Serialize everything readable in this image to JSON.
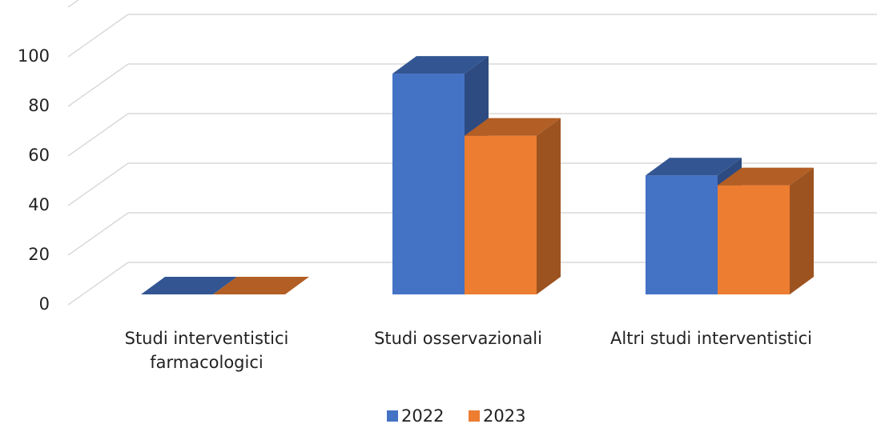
{
  "chart_data": {
    "type": "bar3d",
    "categories": [
      "Studi interventistici farmacologici",
      "Studi osservazionali",
      "Altri studi interventistici"
    ],
    "series": [
      {
        "name": "2022",
        "color": "#4472c4",
        "values": [
          0,
          89,
          48
        ]
      },
      {
        "name": "2023",
        "color": "#ed7d31",
        "values": [
          0,
          64,
          44
        ]
      }
    ],
    "ylim": [
      0,
      100
    ],
    "yticks": [
      0,
      20,
      40,
      60,
      80,
      100
    ],
    "grid": true,
    "legend": "bottom"
  }
}
